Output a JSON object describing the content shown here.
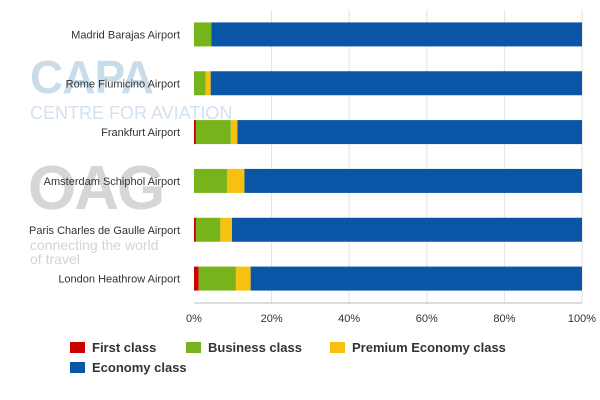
{
  "watermarks": {
    "capa_logo": "CAPA",
    "capa_sub": "CENTRE FOR AVIATION",
    "oag_logo": "OAG",
    "oag_tagline": "connecting the world of travel"
  },
  "colors": {
    "first": "#cc0000",
    "business": "#77b41b",
    "premium": "#f7c20f",
    "economy": "#0a55a5",
    "grid": "#e2e2e2",
    "axis_text": "#333333"
  },
  "chart_data": {
    "type": "bar",
    "orientation": "horizontal",
    "stacked": true,
    "percent": true,
    "categories": [
      "Madrid Barajas Airport",
      "Rome Fiumicino Airport",
      "Frankfurt Airport",
      "Amsterdam Schiphol Airport",
      "Paris Charles de Gaulle Airport",
      "London Heathrow Airport"
    ],
    "series": [
      {
        "name": "First class",
        "color": "#cc0000",
        "values": [
          0,
          0,
          0.5,
          0,
          0.5,
          1.2
        ]
      },
      {
        "name": "Business class",
        "color": "#77b41b",
        "values": [
          4.5,
          3.0,
          9.0,
          8.5,
          6.3,
          9.6
        ]
      },
      {
        "name": "Premium Economy class",
        "color": "#f7c20f",
        "values": [
          0,
          1.3,
          1.7,
          4.5,
          3.0,
          3.8
        ]
      },
      {
        "name": "Economy class",
        "color": "#0a55a5",
        "values": [
          95.5,
          95.7,
          88.8,
          87.0,
          90.2,
          85.4
        ]
      }
    ],
    "xlim": [
      0,
      100
    ],
    "xticks": [
      "0%",
      "20%",
      "40%",
      "60%",
      "80%",
      "100%"
    ],
    "xtick_values": [
      0,
      20,
      40,
      60,
      80,
      100
    ],
    "grid": true,
    "legend_position": "bottom"
  }
}
